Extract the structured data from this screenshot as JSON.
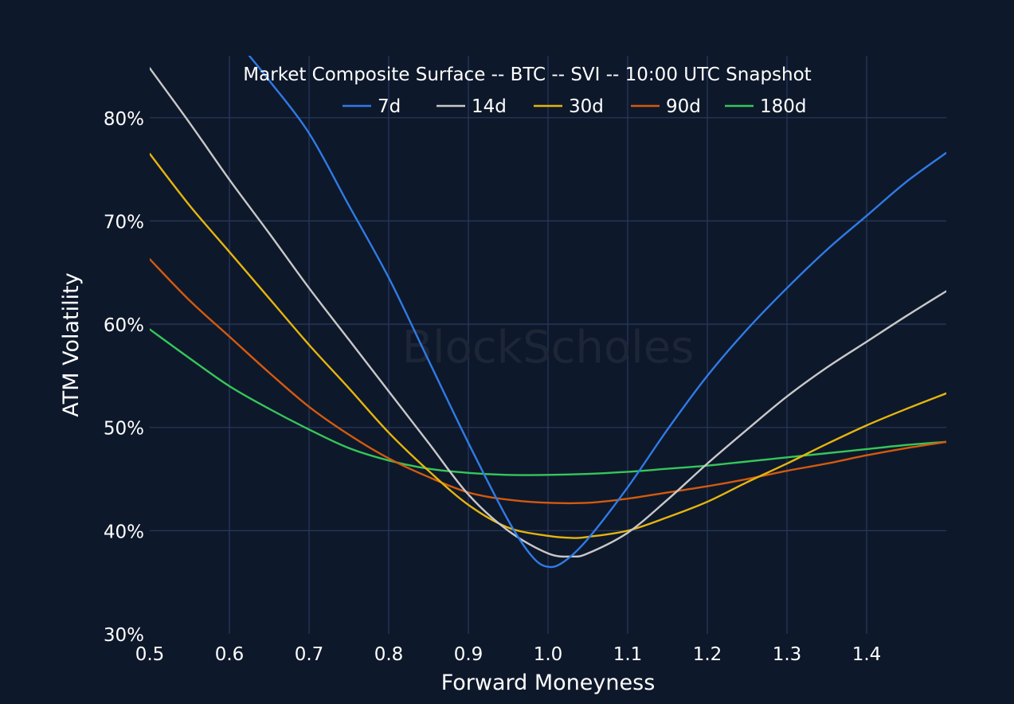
{
  "chart_data": {
    "type": "line",
    "title": "Market Composite Surface -- BTC -- SVI -- 10:00 UTC Snapshot",
    "xlabel": "Forward Moneyness",
    "ylabel": "ATM Volatility",
    "xlim": [
      0.5,
      1.5
    ],
    "ylim": [
      30,
      86
    ],
    "x_ticks": [
      0.5,
      0.6,
      0.7,
      0.8,
      0.9,
      1.0,
      1.1,
      1.2,
      1.3,
      1.4
    ],
    "x_tick_labels": [
      "0.5",
      "0.6",
      "0.7",
      "0.8",
      "0.9",
      "1.0",
      "1.1",
      "1.2",
      "1.3",
      "1.4"
    ],
    "y_ticks": [
      30,
      40,
      50,
      60,
      70,
      80
    ],
    "y_tick_labels": [
      "30%",
      "40%",
      "50%",
      "60%",
      "70%",
      "80%"
    ],
    "legend_position": "top-center",
    "grid": true,
    "watermark": "BlockScholes",
    "series": [
      {
        "name": "7d",
        "color": "#2f7be6",
        "x": [
          0.625,
          0.65,
          0.7,
          0.75,
          0.8,
          0.85,
          0.9,
          0.95,
          0.98,
          1.0,
          1.02,
          1.05,
          1.1,
          1.15,
          1.2,
          1.25,
          1.3,
          1.35,
          1.4,
          1.45,
          1.5
        ],
        "y": [
          86.0,
          83.6,
          78.5,
          71.5,
          64.5,
          56.5,
          48.5,
          41.0,
          37.5,
          36.5,
          37.0,
          39.2,
          44.2,
          49.8,
          55.0,
          59.5,
          63.5,
          67.2,
          70.5,
          73.8,
          76.6
        ]
      },
      {
        "name": "14d",
        "color": "#c8c8c8",
        "x": [
          0.5,
          0.55,
          0.6,
          0.65,
          0.7,
          0.75,
          0.8,
          0.85,
          0.9,
          0.95,
          1.0,
          1.03,
          1.05,
          1.1,
          1.15,
          1.2,
          1.25,
          1.3,
          1.35,
          1.4,
          1.45,
          1.5
        ],
        "y": [
          84.8,
          79.5,
          74.0,
          68.8,
          63.5,
          58.5,
          53.5,
          48.5,
          43.5,
          40.0,
          37.8,
          37.5,
          37.8,
          39.8,
          43.0,
          46.5,
          49.8,
          53.0,
          55.8,
          58.3,
          60.8,
          63.2
        ]
      },
      {
        "name": "30d",
        "color": "#e5b50e",
        "x": [
          0.5,
          0.55,
          0.6,
          0.65,
          0.7,
          0.75,
          0.8,
          0.85,
          0.9,
          0.95,
          1.0,
          1.03,
          1.05,
          1.1,
          1.15,
          1.2,
          1.25,
          1.3,
          1.35,
          1.4,
          1.45,
          1.5
        ],
        "y": [
          76.5,
          71.5,
          67.0,
          62.5,
          58.0,
          53.8,
          49.5,
          45.8,
          42.5,
          40.3,
          39.5,
          39.3,
          39.4,
          40.0,
          41.3,
          42.8,
          44.7,
          46.5,
          48.4,
          50.2,
          51.8,
          53.3
        ]
      },
      {
        "name": "90d",
        "color": "#d35a0e",
        "x": [
          0.5,
          0.55,
          0.6,
          0.65,
          0.7,
          0.75,
          0.8,
          0.85,
          0.9,
          0.95,
          1.0,
          1.05,
          1.1,
          1.15,
          1.2,
          1.25,
          1.3,
          1.35,
          1.4,
          1.45,
          1.5
        ],
        "y": [
          66.3,
          62.3,
          58.8,
          55.3,
          52.0,
          49.3,
          47.0,
          45.2,
          43.7,
          43.0,
          42.7,
          42.7,
          43.1,
          43.7,
          44.3,
          45.0,
          45.8,
          46.5,
          47.3,
          48.0,
          48.6
        ]
      },
      {
        "name": "180d",
        "color": "#35c759",
        "x": [
          0.5,
          0.55,
          0.6,
          0.65,
          0.7,
          0.75,
          0.8,
          0.85,
          0.9,
          0.95,
          1.0,
          1.05,
          1.1,
          1.15,
          1.2,
          1.25,
          1.3,
          1.35,
          1.4,
          1.45,
          1.5
        ],
        "y": [
          59.5,
          56.7,
          54.0,
          51.8,
          49.8,
          48.0,
          46.8,
          46.0,
          45.6,
          45.4,
          45.4,
          45.5,
          45.7,
          46.0,
          46.3,
          46.7,
          47.1,
          47.5,
          47.9,
          48.3,
          48.6
        ]
      }
    ]
  }
}
